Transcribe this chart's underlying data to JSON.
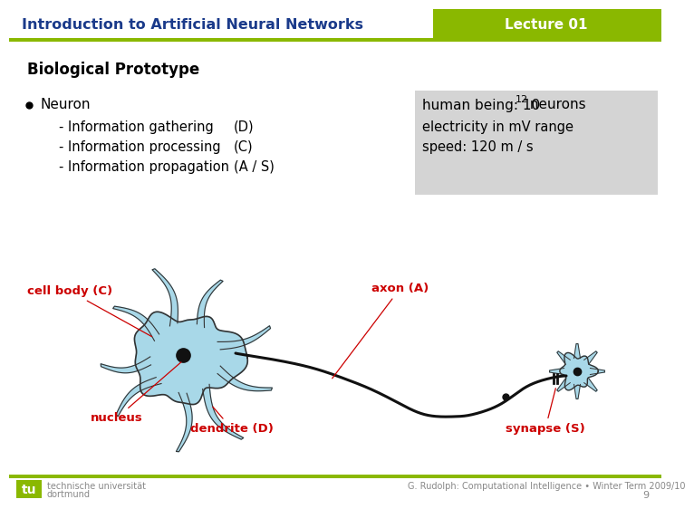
{
  "title": "Introduction to Artificial Neural Networks",
  "lecture": "Lecture 01",
  "section": "Biological Prototype",
  "bullet": "Neuron",
  "sub1": "- Information gathering",
  "sub1_code": "(D)",
  "sub2": "- Information processing",
  "sub2_code": "(C)",
  "sub3": "- Information propagation",
  "sub3_code": "(A / S)",
  "info1_pre": "human being: 10",
  "info1_sup": "12",
  "info1_post": " neurons",
  "info2": "electricity in mV range",
  "info3": "speed: 120 m / s",
  "label_cellbody": "cell body (C)",
  "label_nucleus": "nucleus",
  "label_dendrite": "dendrite (D)",
  "label_axon": "axon (A)",
  "label_synapse": "synapse (S)",
  "footer_left1": "technische universität",
  "footer_left2": "dortmund",
  "footer_right": "G. Rudolph: Computational Intelligence • Winter Term 2009/10",
  "page_num": "9",
  "header_bg": "#8ab800",
  "header_title_color": "#1a3a8a",
  "header_lecture_color": "#ffffff",
  "slide_bg": "#ffffff",
  "section_color": "#000000",
  "text_color": "#000000",
  "info_box_bg": "#d4d4d4",
  "neuron_fill": "#a8d8e8",
  "neuron_outline": "#333333",
  "label_color_red": "#cc0000",
  "footer_line_color": "#8ab800",
  "footer_text_color": "#888888"
}
